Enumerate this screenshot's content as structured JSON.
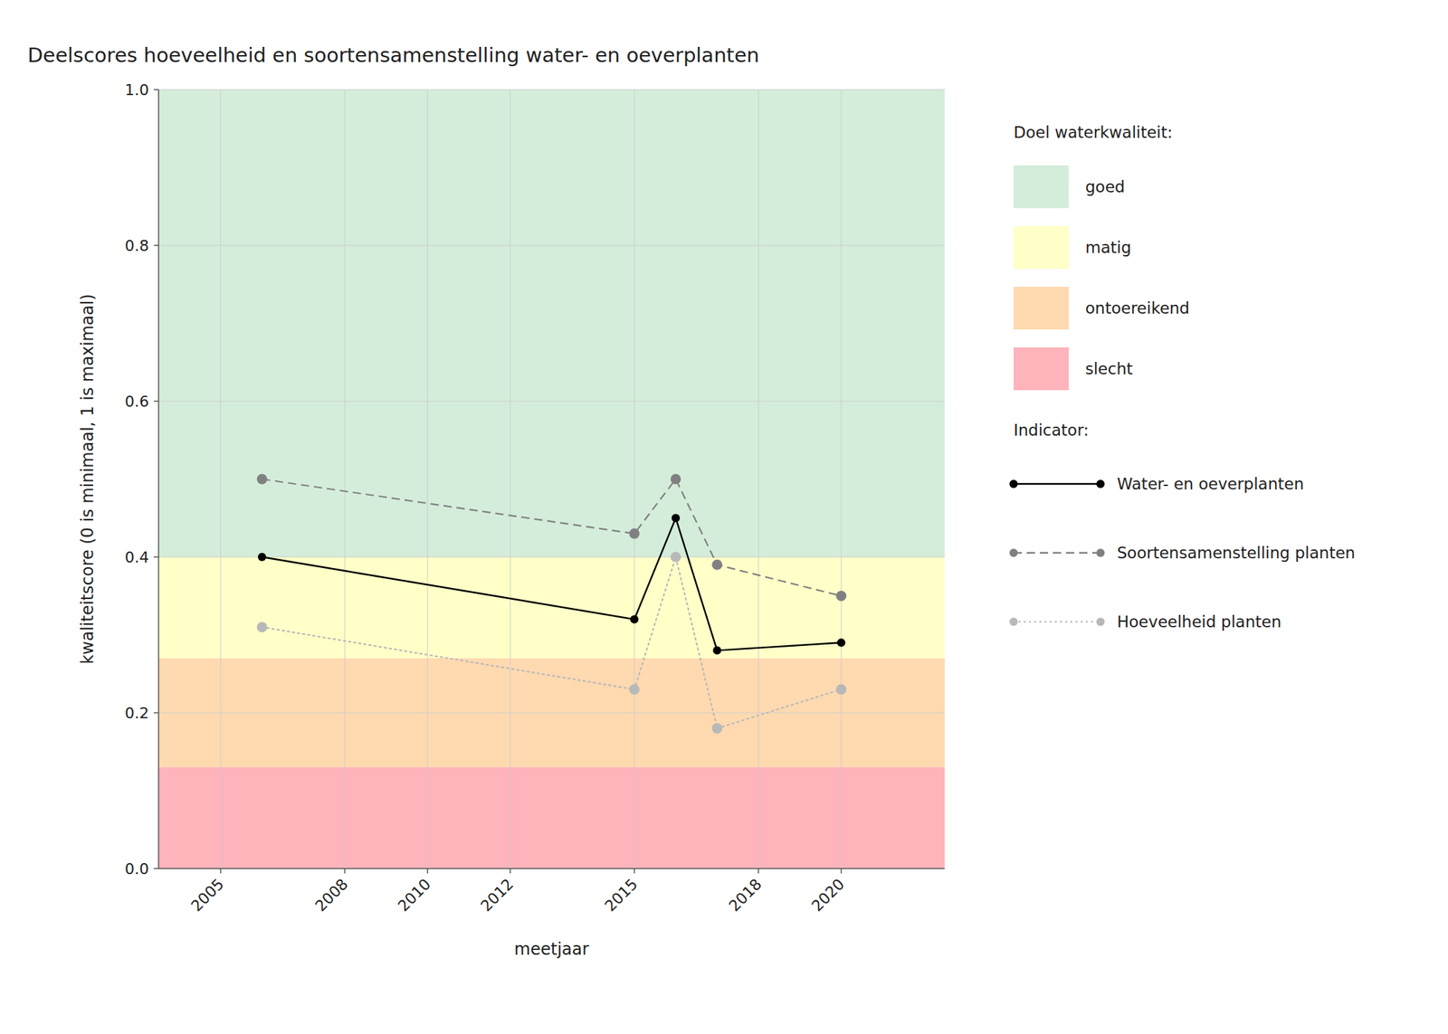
{
  "chart_data": {
    "type": "line",
    "title": "Deelscores hoeveelheid en soortensamenstelling water- en oeverplanten",
    "x_label": "meetjaar",
    "y_label": "kwaliteitscore (0 is minimaal, 1 is maximaal)",
    "x": [
      2006,
      2015,
      2016,
      2017,
      2020
    ],
    "xlim": [
      2003.5,
      2022.5
    ],
    "xticks": [
      2005,
      2008,
      2010,
      2012,
      2015,
      2018,
      2020
    ],
    "ylim": [
      0.0,
      1.0
    ],
    "yticks": [
      {
        "value": 0.0,
        "label": "0.0"
      },
      0.2,
      0.4,
      0.6,
      0.8,
      {
        "value": 1.0,
        "label": "1.0"
      }
    ],
    "grid": true,
    "legend": "right",
    "band_legend_title": "Doel waterkwaliteit:",
    "series_legend_title": "Indicator:",
    "bands": [
      {
        "name": "goed",
        "from": 0.4,
        "to": 1.0,
        "color": "#d4edda"
      },
      {
        "name": "matig",
        "from": 0.27,
        "to": 0.4,
        "color": "#ffffc8"
      },
      {
        "name": "ontoereikend",
        "from": 0.13,
        "to": 0.27,
        "color": "#ffd9b0"
      },
      {
        "name": "slecht",
        "from": 0.0,
        "to": 0.13,
        "color": "#ffb3ba"
      }
    ],
    "series": [
      {
        "name": "Water- en oeverplanten",
        "color": "#000000",
        "line_style": "solid",
        "marker": "circle",
        "values": [
          0.4,
          0.32,
          0.45,
          0.28,
          0.29
        ]
      },
      {
        "name": "Soortensamenstelling planten",
        "color": "#808080",
        "line_style": "dashed",
        "marker": "circle",
        "values": [
          0.5,
          0.43,
          0.5,
          0.39,
          0.35
        ]
      },
      {
        "name": "Hoeveelheid planten",
        "color": "#b8b8b8",
        "line_style": "dotted",
        "marker": "circle",
        "values": [
          0.31,
          0.23,
          0.4,
          0.18,
          0.23
        ]
      }
    ]
  }
}
